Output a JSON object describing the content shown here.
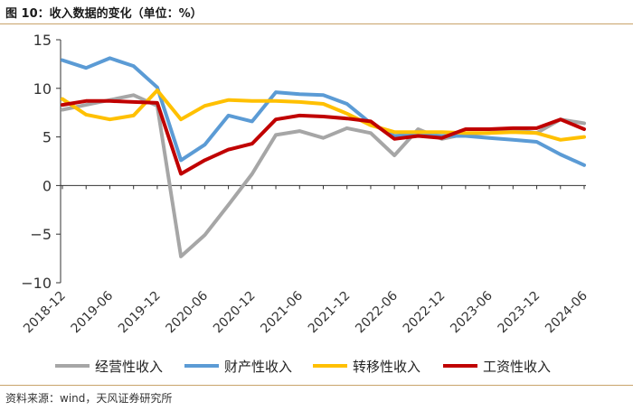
{
  "title": "图 10：收入数据的变化（单位：%）",
  "source": "资料来源：wind，天风证券研究所",
  "chart_data": {
    "type": "line",
    "x": [
      "2018-12",
      "2019-03",
      "2019-06",
      "2019-09",
      "2019-12",
      "2020-03",
      "2020-06",
      "2020-09",
      "2020-12",
      "2021-03",
      "2021-06",
      "2021-09",
      "2021-12",
      "2022-03",
      "2022-06",
      "2022-09",
      "2022-12",
      "2023-03",
      "2023-06",
      "2023-09",
      "2023-12",
      "2024-03",
      "2024-06"
    ],
    "x_tick_labels": [
      "2018-12",
      "2019-06",
      "2019-12",
      "2020-06",
      "2020-12",
      "2021-06",
      "2021-12",
      "2022-06",
      "2022-12",
      "2023-06",
      "2023-12",
      "2024-06"
    ],
    "y_tick_labels": [
      "15",
      "10",
      "5",
      "0",
      "−5",
      "−10"
    ],
    "ylim": [
      -10,
      15
    ],
    "yticks": [
      15,
      10,
      5,
      0,
      -5,
      -10
    ],
    "grid": false,
    "legend_position": "bottom",
    "series": [
      {
        "name": "经营性收入",
        "color": "#a6a6a6",
        "values": [
          7.8,
          8.3,
          8.8,
          9.3,
          8.2,
          -7.3,
          -5.1,
          -2.0,
          1.2,
          5.2,
          5.6,
          4.9,
          5.9,
          5.4,
          3.1,
          5.8,
          4.8,
          5.3,
          5.4,
          5.8,
          5.4,
          6.8,
          6.4
        ]
      },
      {
        "name": "财产性收入",
        "color": "#5b9bd5",
        "values": [
          12.9,
          12.1,
          13.1,
          12.3,
          10.1,
          2.6,
          4.2,
          7.2,
          6.6,
          9.6,
          9.4,
          9.3,
          8.4,
          6.4,
          5.1,
          5.3,
          5.1,
          5.1,
          4.9,
          4.7,
          4.5,
          3.2,
          2.1
        ]
      },
      {
        "name": "转移性收入",
        "color": "#ffc000",
        "values": [
          8.9,
          7.3,
          6.8,
          7.2,
          9.8,
          6.8,
          8.2,
          8.8,
          8.7,
          8.7,
          8.6,
          8.4,
          7.4,
          6.2,
          5.5,
          5.5,
          5.5,
          5.4,
          5.4,
          5.5,
          5.4,
          4.7,
          5.0
        ]
      },
      {
        "name": "工资性收入",
        "color": "#c00000",
        "values": [
          8.3,
          8.7,
          8.7,
          8.6,
          8.5,
          1.2,
          2.6,
          3.7,
          4.3,
          6.8,
          7.2,
          7.1,
          6.9,
          6.6,
          4.8,
          5.1,
          4.9,
          5.8,
          5.8,
          5.9,
          5.9,
          6.8,
          5.8
        ]
      }
    ]
  }
}
